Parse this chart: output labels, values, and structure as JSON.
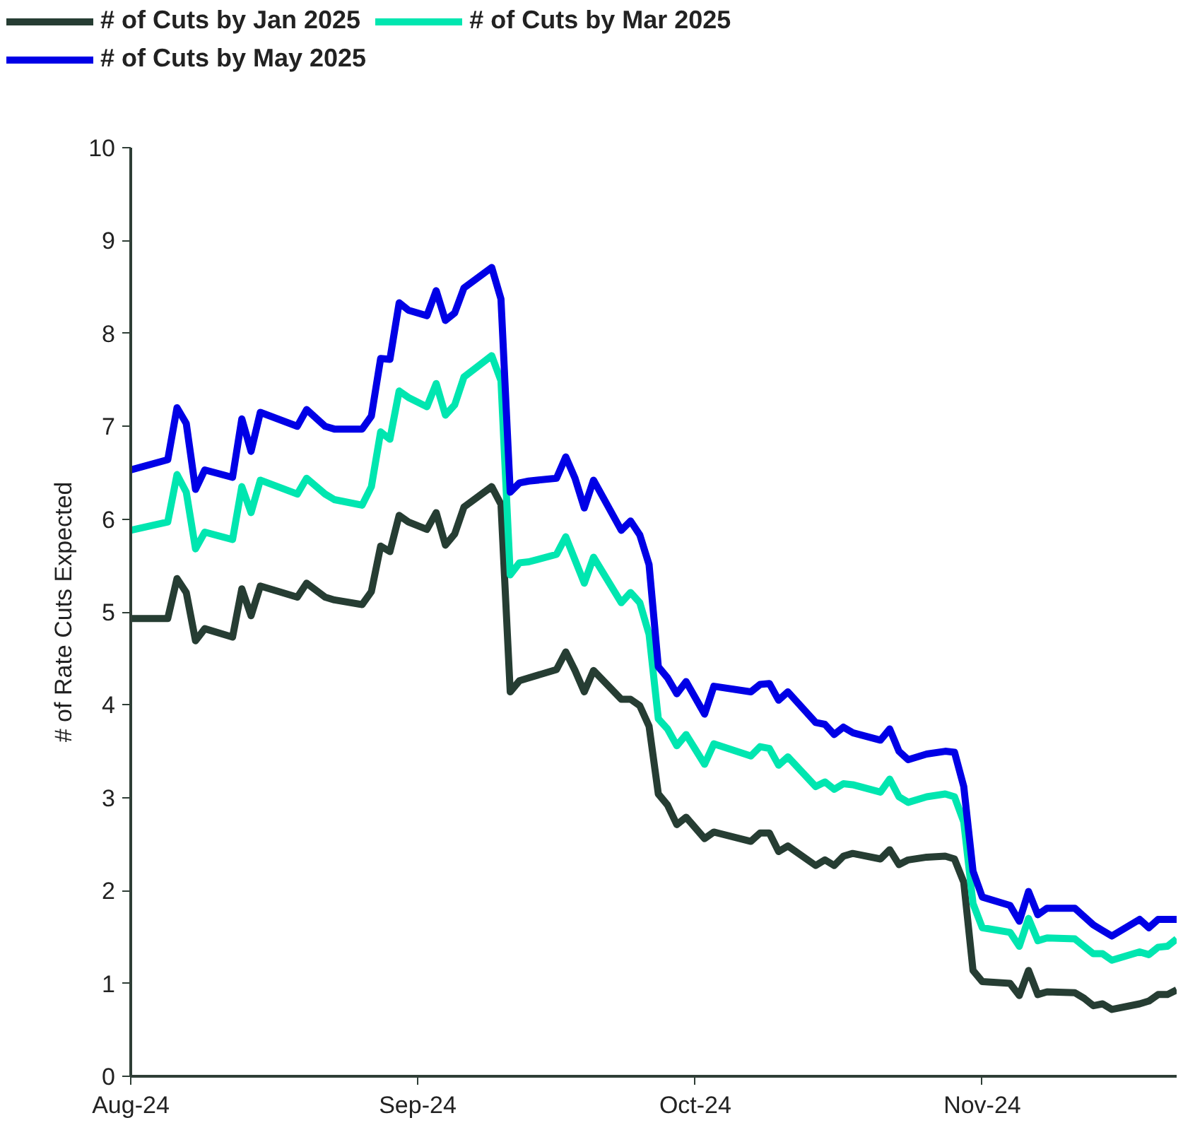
{
  "chart_data": {
    "type": "line",
    "ylabel": "# of Rate Cuts Expected",
    "x": [
      "2024-08-01",
      "2024-08-05",
      "2024-08-06",
      "2024-08-07",
      "2024-08-08",
      "2024-08-09",
      "2024-08-12",
      "2024-08-13",
      "2024-08-14",
      "2024-08-15",
      "2024-08-19",
      "2024-08-20",
      "2024-08-22",
      "2024-08-23",
      "2024-08-26",
      "2024-08-27",
      "2024-08-28",
      "2024-08-29",
      "2024-08-30",
      "2024-08-31",
      "2024-09-02",
      "2024-09-03",
      "2024-09-04",
      "2024-09-05",
      "2024-09-06",
      "2024-09-09",
      "2024-09-10",
      "2024-09-11",
      "2024-09-12",
      "2024-09-13",
      "2024-09-16",
      "2024-09-17",
      "2024-09-18",
      "2024-09-19",
      "2024-09-20",
      "2024-09-23",
      "2024-09-24",
      "2024-09-25",
      "2024-09-26",
      "2024-09-27",
      "2024-09-28",
      "2024-09-29",
      "2024-09-30",
      "2024-10-02",
      "2024-10-03",
      "2024-10-07",
      "2024-10-08",
      "2024-10-09",
      "2024-10-10",
      "2024-10-11",
      "2024-10-14",
      "2024-10-15",
      "2024-10-16",
      "2024-10-17",
      "2024-10-18",
      "2024-10-21",
      "2024-10-22",
      "2024-10-23",
      "2024-10-24",
      "2024-10-26",
      "2024-10-28",
      "2024-10-29",
      "2024-10-30",
      "2024-10-31",
      "2024-11-01",
      "2024-11-04",
      "2024-11-05",
      "2024-11-06",
      "2024-11-07",
      "2024-11-08",
      "2024-11-11",
      "2024-11-12",
      "2024-11-13",
      "2024-11-14",
      "2024-11-15",
      "2024-11-18",
      "2024-11-19",
      "2024-11-20",
      "2024-11-21",
      "2024-11-22"
    ],
    "series": [
      {
        "name": "# of Cuts by Jan 2025",
        "color": "#263d33",
        "values": [
          4.93,
          4.93,
          5.36,
          5.21,
          4.69,
          4.82,
          4.73,
          5.25,
          4.96,
          5.28,
          5.16,
          5.31,
          5.16,
          5.13,
          5.08,
          5.22,
          5.71,
          5.65,
          6.04,
          5.97,
          5.89,
          6.07,
          5.72,
          5.84,
          6.13,
          6.35,
          6.16,
          4.14,
          4.26,
          4.29,
          4.38,
          4.57,
          4.37,
          4.14,
          4.37,
          4.06,
          4.06,
          3.99,
          3.77,
          3.04,
          2.92,
          2.71,
          2.79,
          2.56,
          2.63,
          2.53,
          2.62,
          2.62,
          2.42,
          2.48,
          2.27,
          2.33,
          2.27,
          2.37,
          2.4,
          2.34,
          2.44,
          2.28,
          2.33,
          2.36,
          2.37,
          2.34,
          2.09,
          1.14,
          1.02,
          1.0,
          0.87,
          1.14,
          0.88,
          0.91,
          0.9,
          0.84,
          0.76,
          0.78,
          0.72,
          0.78,
          0.81,
          0.88,
          0.88,
          0.93
        ]
      },
      {
        "name": "# of Cuts by Mar 2025",
        "color": "#00e6b0",
        "values": [
          5.88,
          5.97,
          6.48,
          6.29,
          5.68,
          5.86,
          5.78,
          6.35,
          6.07,
          6.42,
          6.27,
          6.44,
          6.27,
          6.21,
          6.15,
          6.35,
          6.94,
          6.86,
          7.38,
          7.31,
          7.21,
          7.46,
          7.12,
          7.23,
          7.53,
          7.76,
          7.49,
          5.4,
          5.53,
          5.54,
          5.62,
          5.81,
          5.56,
          5.31,
          5.59,
          5.1,
          5.21,
          5.1,
          4.76,
          3.85,
          3.74,
          3.56,
          3.68,
          3.36,
          3.58,
          3.45,
          3.55,
          3.53,
          3.35,
          3.44,
          3.12,
          3.17,
          3.09,
          3.15,
          3.14,
          3.06,
          3.2,
          3.01,
          2.95,
          3.01,
          3.04,
          3.01,
          2.74,
          1.86,
          1.6,
          1.55,
          1.4,
          1.7,
          1.46,
          1.49,
          1.48,
          1.4,
          1.32,
          1.32,
          1.25,
          1.34,
          1.31,
          1.39,
          1.4,
          1.48
        ]
      },
      {
        "name": "# of Cuts by May 2025",
        "color": "#0000e6",
        "values": [
          6.53,
          6.64,
          7.2,
          7.03,
          6.32,
          6.53,
          6.45,
          7.08,
          6.73,
          7.15,
          7.0,
          7.18,
          7.0,
          6.97,
          6.97,
          7.11,
          7.73,
          7.72,
          8.33,
          8.25,
          8.19,
          8.46,
          8.14,
          8.22,
          8.49,
          8.71,
          8.37,
          6.29,
          6.39,
          6.41,
          6.44,
          6.67,
          6.44,
          6.12,
          6.42,
          5.88,
          5.98,
          5.83,
          5.51,
          4.41,
          4.29,
          4.12,
          4.25,
          3.9,
          4.2,
          4.14,
          4.22,
          4.23,
          4.05,
          4.14,
          3.81,
          3.79,
          3.68,
          3.76,
          3.7,
          3.62,
          3.74,
          3.5,
          3.41,
          3.47,
          3.5,
          3.49,
          3.12,
          2.21,
          1.93,
          1.84,
          1.67,
          1.99,
          1.74,
          1.81,
          1.81,
          1.72,
          1.63,
          1.57,
          1.51,
          1.69,
          1.6,
          1.69,
          1.69,
          1.69
        ]
      }
    ],
    "xlim": [
      "2024-08-01",
      "2024-11-22"
    ],
    "xticks": [
      {
        "value": "2024-08-01",
        "label": "Aug-24"
      },
      {
        "value": "2024-09-01",
        "label": "Sep-24"
      },
      {
        "value": "2024-10-01",
        "label": "Oct-24"
      },
      {
        "value": "2024-11-01",
        "label": "Nov-24"
      }
    ],
    "ylim": [
      0,
      10
    ],
    "yticks": [
      0,
      1,
      2,
      3,
      4,
      5,
      6,
      7,
      8,
      9,
      10
    ],
    "grid": false,
    "legend": "top left",
    "marker": "none",
    "line_style": "solid"
  }
}
